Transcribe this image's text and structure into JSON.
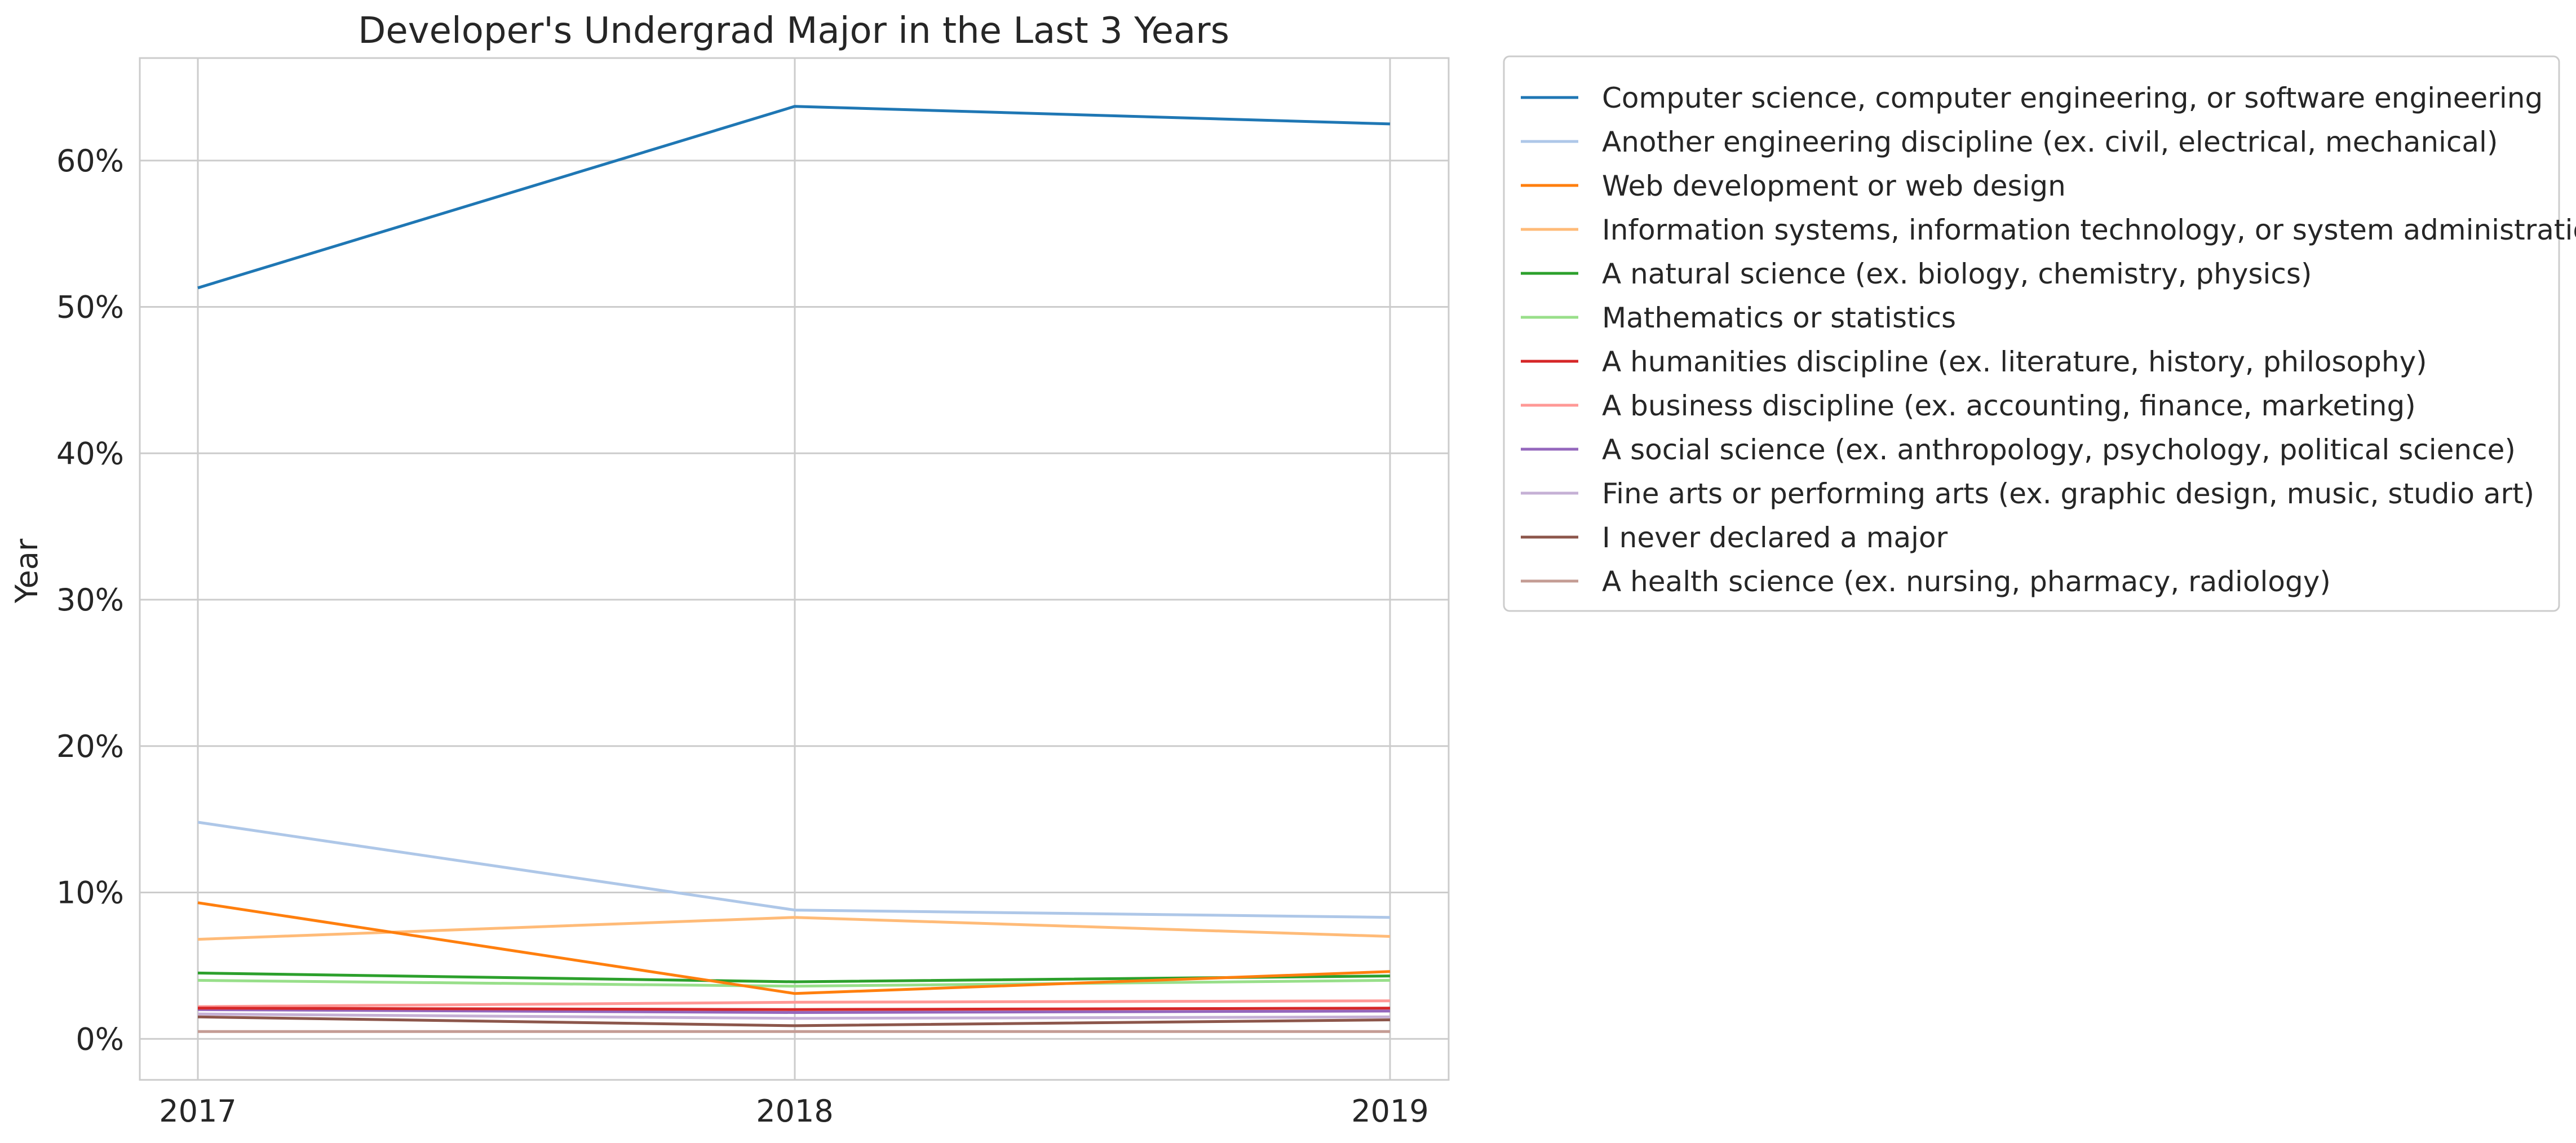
{
  "chart_data": {
    "type": "line",
    "title": "Developer's Undergrad Major in the Last 3 Years",
    "xlabel": "",
    "ylabel": "Year",
    "x": [
      "2017",
      "2018",
      "2019"
    ],
    "ylim": [
      -2.8,
      67
    ],
    "y_ticks": [
      0,
      10,
      20,
      30,
      40,
      50,
      60
    ],
    "y_tick_labels": [
      "0%",
      "10%",
      "20%",
      "30%",
      "40%",
      "50%",
      "60%"
    ],
    "grid": true,
    "legend_position": "outside-right-top",
    "series": [
      {
        "name": "Computer science, computer engineering, or software engineering",
        "color": "#1f77b4",
        "values": [
          51.3,
          63.7,
          62.5
        ]
      },
      {
        "name": "Another engineering discipline (ex. civil, electrical, mechanical)",
        "color": "#aec7e8",
        "values": [
          14.8,
          8.8,
          8.3
        ]
      },
      {
        "name": "Web development or web design",
        "color": "#ff7f0e",
        "values": [
          9.3,
          3.1,
          4.6
        ]
      },
      {
        "name": "Information systems, information technology, or system administration",
        "color": "#ffbb78",
        "values": [
          6.8,
          8.3,
          7.0
        ]
      },
      {
        "name": "A natural science (ex. biology, chemistry, physics)",
        "color": "#2ca02c",
        "values": [
          4.5,
          3.9,
          4.3
        ]
      },
      {
        "name": "Mathematics or statistics",
        "color": "#98df8a",
        "values": [
          4.0,
          3.6,
          4.0
        ]
      },
      {
        "name": "A humanities discipline (ex. literature, history, philosophy)",
        "color": "#d62728",
        "values": [
          2.1,
          2.0,
          2.1
        ]
      },
      {
        "name": "A business discipline (ex. accounting, finance, marketing)",
        "color": "#ff9896",
        "values": [
          2.2,
          2.5,
          2.6
        ]
      },
      {
        "name": "A social science (ex. anthropology, psychology, political science)",
        "color": "#9467bd",
        "values": [
          2.0,
          1.8,
          1.9
        ]
      },
      {
        "name": "Fine arts or performing arts (ex. graphic design, music, studio art)",
        "color": "#c5b0d5",
        "values": [
          1.7,
          1.4,
          1.5
        ]
      },
      {
        "name": "I never declared a major",
        "color": "#8c564b",
        "values": [
          1.5,
          0.9,
          1.3
        ]
      },
      {
        "name": "A health science (ex. nursing, pharmacy, radiology)",
        "color": "#c49c94",
        "values": [
          0.5,
          0.5,
          0.5
        ]
      }
    ]
  }
}
